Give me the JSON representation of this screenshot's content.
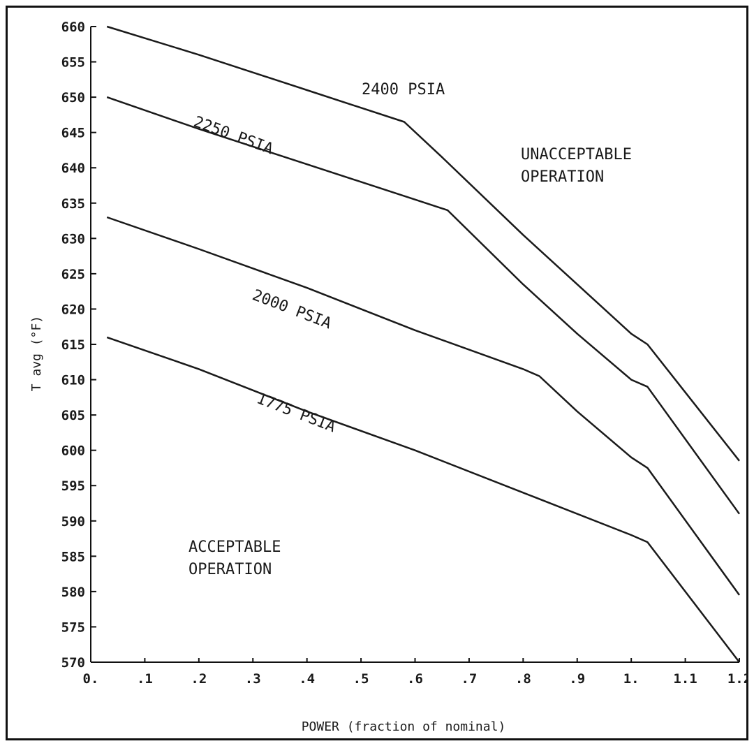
{
  "chart_data": {
    "type": "line",
    "xlabel": "POWER (fraction of nominal)",
    "ylabel": "T avg (°F)",
    "xlim": [
      0,
      1.2
    ],
    "ylim": [
      570,
      660
    ],
    "x_ticks": [
      0,
      0.1,
      0.2,
      0.3,
      0.4,
      0.5,
      0.6,
      0.7,
      0.8,
      0.9,
      1.0,
      1.1,
      1.2
    ],
    "x_tick_labels": [
      "0.",
      ".1",
      ".2",
      ".3",
      ".4",
      ".5",
      ".6",
      ".7",
      ".8",
      ".9",
      "1.",
      "1.1",
      "1.2"
    ],
    "y_ticks": [
      570,
      575,
      580,
      585,
      590,
      595,
      600,
      605,
      610,
      615,
      620,
      625,
      630,
      635,
      640,
      645,
      650,
      655,
      660
    ],
    "y_tick_labels": [
      "570",
      "575",
      "580",
      "585",
      "590",
      "595",
      "600",
      "605",
      "610",
      "615",
      "620",
      "625",
      "630",
      "635",
      "640",
      "645",
      "650",
      "655",
      "660"
    ],
    "grid": false,
    "legend": "none",
    "series": [
      {
        "name": "2400 PSIA",
        "x": [
          0.03,
          0.2,
          0.4,
          0.58,
          0.65,
          0.8,
          0.9,
          1.0,
          1.03,
          1.2
        ],
        "y": [
          660,
          656,
          651,
          646.5,
          641.5,
          630.5,
          623.5,
          616.5,
          615,
          598.5
        ]
      },
      {
        "name": "2250 PSIA",
        "x": [
          0.03,
          0.2,
          0.4,
          0.6,
          0.66,
          0.8,
          0.9,
          1.0,
          1.03,
          1.2
        ],
        "y": [
          650,
          645.5,
          640.5,
          635.5,
          634,
          623.5,
          616.5,
          610,
          609,
          591
        ]
      },
      {
        "name": "2000 PSIA",
        "x": [
          0.03,
          0.2,
          0.4,
          0.6,
          0.8,
          0.83,
          0.9,
          1.0,
          1.03,
          1.2
        ],
        "y": [
          633,
          628.5,
          623,
          617,
          611.5,
          610.5,
          605.5,
          599,
          597.5,
          579.5
        ]
      },
      {
        "name": "1775 PSIA",
        "x": [
          0.03,
          0.2,
          0.4,
          0.6,
          0.8,
          1.0,
          1.03,
          1.2
        ],
        "y": [
          616,
          611.5,
          605.5,
          600,
          594,
          588,
          587,
          570
        ]
      }
    ],
    "annotations": [
      "2400 PSIA",
      "2250 PSIA",
      "2000 PSIA",
      "1775 PSIA",
      "UNACCEPTABLE OPERATION",
      "ACCEPTABLE OPERATION"
    ],
    "regions": {
      "unacceptable": [
        "UNACCEPTABLE",
        "OPERATION"
      ],
      "acceptable": [
        "ACCEPTABLE",
        "OPERATION"
      ]
    }
  }
}
